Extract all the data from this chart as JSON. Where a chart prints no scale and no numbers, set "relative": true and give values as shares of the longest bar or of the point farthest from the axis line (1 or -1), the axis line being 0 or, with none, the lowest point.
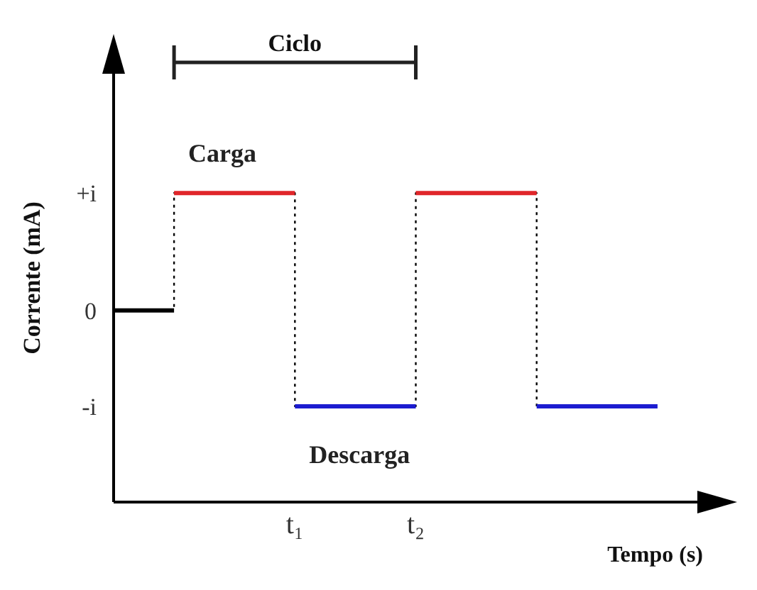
{
  "chart_data": {
    "type": "line",
    "xlabel": "Tempo (s)",
    "ylabel": "Corrente (mA)",
    "relative": true,
    "categories": [
      null,
      null,
      null,
      "t₁",
      null,
      "t₂",
      null,
      null,
      null,
      null
    ],
    "annotations": [
      "+i",
      "0",
      "-i",
      "Ciclo"
    ],
    "series": [
      {
        "type": "step",
        "color": "#000000",
        "values": [
          0.62,
          1,
          1,
          0.31,
          0.31,
          1,
          1,
          0.31,
          null,
          null
        ],
        "line_style": "dotted"
      },
      {
        "color": "#000000",
        "values": [
          0.62,
          0.62,
          null,
          null,
          null,
          null,
          null,
          null,
          null,
          null
        ],
        "line_style": "solid"
      },
      {
        "name": "Carga",
        "color": "#e0262a",
        "values": [
          null,
          1,
          1,
          1,
          null,
          1,
          1,
          1,
          null,
          null
        ],
        "line_style": "solid"
      },
      {
        "name": "Descarga",
        "color": "#1c1cd0",
        "values": [
          null,
          null,
          null,
          0.31,
          0.31,
          0.31,
          null,
          0.31,
          0.31,
          0.31
        ],
        "line_style": "solid"
      }
    ]
  }
}
